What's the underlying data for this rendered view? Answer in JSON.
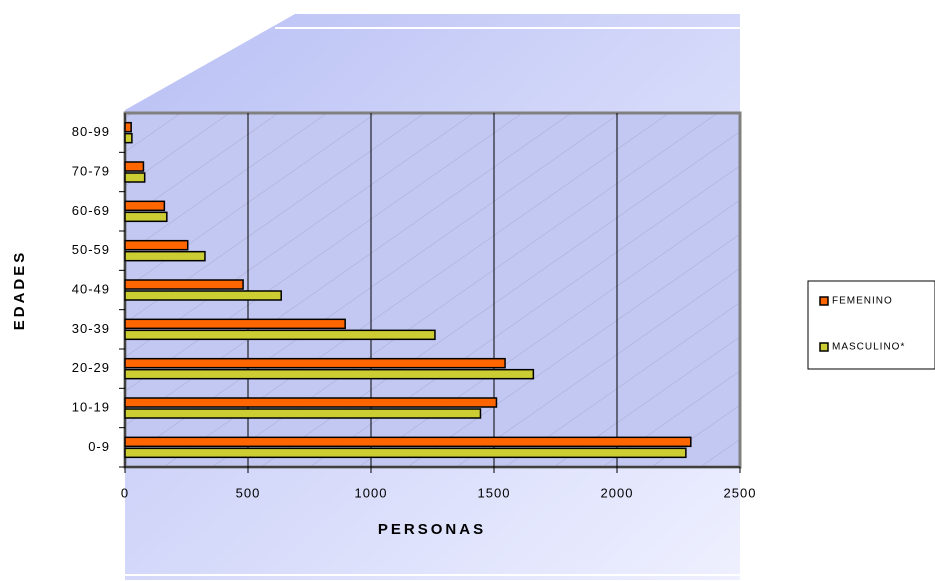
{
  "chart_data": {
    "type": "hbar",
    "x_label": "PERSONAS",
    "y_label": "EDADES",
    "categories": [
      "0-9",
      "10-19",
      "20-29",
      "30-39",
      "40-49",
      "50-59",
      "60-69",
      "70-79",
      "80-99"
    ],
    "series": [
      {
        "name": "FEMENINO",
        "color": "#ff6600",
        "values": [
          2300,
          1510,
          1545,
          895,
          480,
          255,
          160,
          75,
          25
        ]
      },
      {
        "name": "MASCULINO*",
        "color": "#cccc33",
        "values": [
          2280,
          1445,
          1660,
          1260,
          635,
          325,
          170,
          80,
          28
        ]
      }
    ],
    "xlim": [
      0,
      2500
    ],
    "xticks": [
      0,
      500,
      1000,
      1500,
      2000,
      2500
    ],
    "grid": true
  }
}
